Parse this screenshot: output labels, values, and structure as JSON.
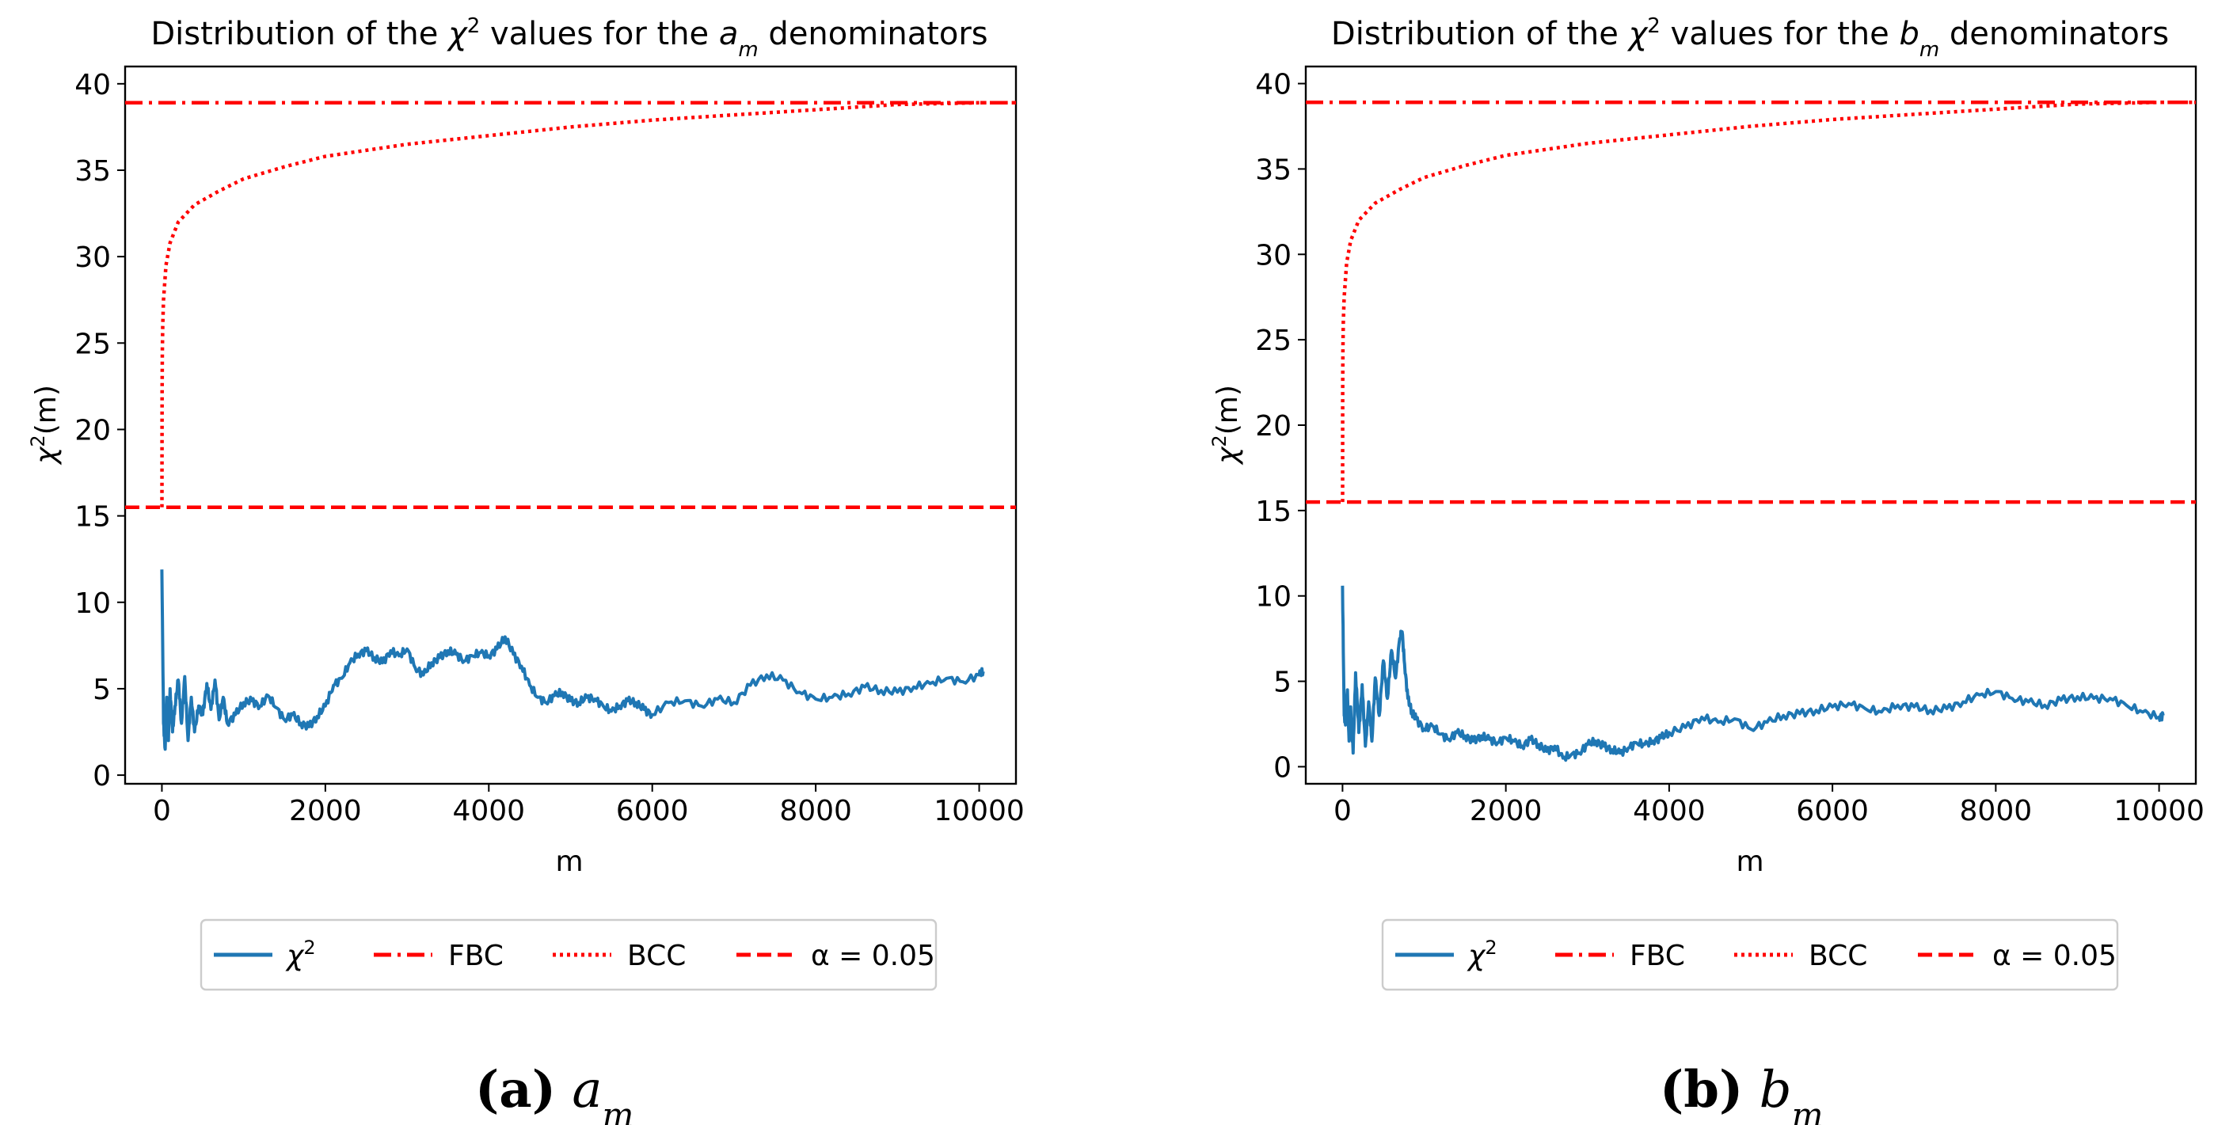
{
  "panels": [
    {
      "id": "a",
      "title_prefix": "Distribution of the ",
      "title_chi": "χ",
      "title_sup": "2",
      "title_mid": " values for the ",
      "title_var": "a",
      "title_sub": "m",
      "title_suffix": " denominators",
      "xlabel": "m",
      "ylabel_chi": "χ",
      "ylabel_sup": "2",
      "ylabel_rest": "(m)",
      "caption_letter": "(a)",
      "caption_var": "a",
      "caption_sub": "m"
    },
    {
      "id": "b",
      "title_prefix": "Distribution of the ",
      "title_chi": "χ",
      "title_sup": "2",
      "title_mid": " values for the ",
      "title_var": "b",
      "title_sub": "m",
      "title_suffix": " denominators",
      "xlabel": "m",
      "ylabel_chi": "χ",
      "ylabel_sup": "2",
      "ylabel_rest": "(m)",
      "caption_letter": "(b)",
      "caption_var": "b",
      "caption_sub": "m"
    }
  ],
  "legend": [
    {
      "label": "χ",
      "sup": "2",
      "style": "solid",
      "color": "#1f77b4"
    },
    {
      "label": "FBC",
      "sup": "",
      "style": "dashdot",
      "color": "#ff0000"
    },
    {
      "label": "BCC",
      "sup": "",
      "style": "dotted",
      "color": "#ff0000"
    },
    {
      "label": "α = 0.05",
      "sup": "",
      "style": "dashed",
      "color": "#ff0000"
    }
  ],
  "colors": {
    "chi2": "#1f77b4",
    "reference": "#ff0000"
  },
  "chart_data": [
    {
      "type": "line",
      "title": "Distribution of the χ² values for the a_m denominators",
      "xlabel": "m",
      "ylabel": "χ²(m)",
      "xlim": [
        -450,
        10450
      ],
      "ylim": [
        -0.5,
        41
      ],
      "xticks": [
        0,
        2000,
        4000,
        6000,
        8000,
        10000
      ],
      "yticks": [
        0,
        5,
        10,
        15,
        20,
        25,
        30,
        35,
        40
      ],
      "grid": false,
      "legend_position": "below",
      "series": [
        {
          "name": "χ²",
          "style": "solid",
          "color": "#1f77b4",
          "x": [
            0,
            20,
            40,
            60,
            80,
            100,
            130,
            160,
            200,
            240,
            280,
            320,
            360,
            400,
            450,
            500,
            550,
            600,
            650,
            700,
            750,
            800,
            900,
            1000,
            1100,
            1200,
            1300,
            1400,
            1500,
            1600,
            1700,
            1800,
            1900,
            2000,
            2100,
            2200,
            2300,
            2400,
            2500,
            2600,
            2700,
            2800,
            2900,
            3000,
            3100,
            3200,
            3300,
            3400,
            3500,
            3600,
            3700,
            3800,
            3900,
            4000,
            4100,
            4200,
            4300,
            4400,
            4500,
            4600,
            4700,
            4800,
            4900,
            5000,
            5100,
            5200,
            5300,
            5400,
            5500,
            5600,
            5700,
            5800,
            5900,
            6000,
            6200,
            6400,
            6600,
            6800,
            7000,
            7200,
            7400,
            7600,
            7800,
            8000,
            8200,
            8400,
            8600,
            8800,
            9000,
            9200,
            9400,
            9600,
            9800,
            10000,
            10050
          ],
          "y": [
            11.9,
            3.0,
            1.5,
            4.5,
            2.0,
            5.0,
            2.5,
            4.0,
            5.5,
            3.0,
            5.7,
            2.0,
            4.5,
            2.5,
            4.0,
            3.5,
            5.3,
            3.8,
            5.5,
            3.2,
            4.5,
            3.0,
            3.5,
            4.2,
            4.3,
            4.0,
            4.6,
            3.9,
            3.2,
            3.5,
            3.0,
            2.8,
            3.4,
            4.0,
            5.2,
            5.6,
            6.5,
            7.0,
            7.2,
            6.8,
            6.5,
            7.2,
            6.9,
            7.3,
            6.2,
            5.8,
            6.5,
            6.8,
            7.2,
            7.0,
            6.6,
            6.9,
            7.1,
            6.9,
            7.3,
            8.0,
            7.0,
            6.3,
            5.2,
            4.5,
            4.2,
            4.6,
            4.8,
            4.3,
            4.2,
            4.5,
            4.4,
            4.0,
            3.7,
            4.0,
            4.3,
            4.2,
            3.8,
            3.5,
            4.2,
            4.3,
            4.0,
            4.4,
            4.2,
            5.2,
            5.8,
            5.5,
            4.8,
            4.4,
            4.5,
            4.7,
            5.1,
            4.9,
            4.8,
            5.1,
            5.3,
            5.6,
            5.4,
            5.8,
            6.0
          ]
        },
        {
          "name": "FBC",
          "style": "dashdot",
          "color": "#ff0000",
          "x": [
            -450,
            10450
          ],
          "y": [
            38.9,
            38.9
          ]
        },
        {
          "name": "BCC",
          "style": "dotted",
          "color": "#ff0000",
          "x": [
            1,
            2,
            5,
            10,
            20,
            50,
            100,
            200,
            400,
            700,
            1000,
            1500,
            2000,
            3000,
            4000,
            5000,
            6000,
            7000,
            8000,
            9000,
            10000,
            10450
          ],
          "y": [
            15.5,
            22.0,
            24.5,
            26.0,
            27.5,
            29.5,
            30.8,
            32.0,
            33.0,
            33.8,
            34.5,
            35.2,
            35.8,
            36.5,
            37.0,
            37.5,
            37.9,
            38.2,
            38.5,
            38.8,
            38.9,
            38.9
          ]
        },
        {
          "name": "α = 0.05",
          "style": "dashed",
          "color": "#ff0000",
          "x": [
            -450,
            10450
          ],
          "y": [
            15.5,
            15.5
          ]
        }
      ]
    },
    {
      "type": "line",
      "title": "Distribution of the χ² values for the b_m denominators",
      "xlabel": "m",
      "ylabel": "χ²(m)",
      "xlim": [
        -450,
        10450
      ],
      "ylim": [
        -1.0,
        41
      ],
      "xticks": [
        0,
        2000,
        4000,
        6000,
        8000,
        10000
      ],
      "yticks": [
        0,
        5,
        10,
        15,
        20,
        25,
        30,
        35,
        40
      ],
      "grid": false,
      "legend_position": "below",
      "series": [
        {
          "name": "χ²",
          "style": "solid",
          "color": "#1f77b4",
          "x": [
            0,
            20,
            40,
            60,
            80,
            100,
            130,
            160,
            200,
            240,
            280,
            320,
            360,
            400,
            450,
            500,
            550,
            600,
            650,
            700,
            730,
            760,
            800,
            850,
            900,
            1000,
            1100,
            1200,
            1300,
            1400,
            1500,
            1600,
            1700,
            1800,
            1900,
            2000,
            2100,
            2200,
            2300,
            2400,
            2500,
            2600,
            2700,
            2800,
            2900,
            3000,
            3100,
            3200,
            3300,
            3400,
            3500,
            3600,
            3700,
            3800,
            3900,
            4000,
            4200,
            4400,
            4600,
            4800,
            5000,
            5200,
            5400,
            5600,
            5800,
            6000,
            6200,
            6400,
            6600,
            6800,
            7000,
            7200,
            7400,
            7600,
            7800,
            8000,
            8200,
            8400,
            8600,
            8800,
            9000,
            9200,
            9400,
            9600,
            9800,
            10000,
            10050
          ],
          "y": [
            10.6,
            3.0,
            2.5,
            4.5,
            1.5,
            3.5,
            0.8,
            5.5,
            2.0,
            4.8,
            1.2,
            3.8,
            1.5,
            5.2,
            3.0,
            6.2,
            4.0,
            6.8,
            5.2,
            7.5,
            7.9,
            6.0,
            4.0,
            3.2,
            2.8,
            2.2,
            2.4,
            1.9,
            1.6,
            2.0,
            1.8,
            1.5,
            1.8,
            1.6,
            1.4,
            1.7,
            1.5,
            1.2,
            1.6,
            1.3,
            0.9,
            1.2,
            0.5,
            0.7,
            0.8,
            1.3,
            1.5,
            1.2,
            1.0,
            0.8,
            1.1,
            1.4,
            1.3,
            1.5,
            1.7,
            2.0,
            2.3,
            2.9,
            2.6,
            2.8,
            2.2,
            2.6,
            3.0,
            3.1,
            3.3,
            3.5,
            3.7,
            3.4,
            3.2,
            3.6,
            3.5,
            3.3,
            3.4,
            3.8,
            4.2,
            4.4,
            4.0,
            3.8,
            3.6,
            3.9,
            4.1,
            4.0,
            4.0,
            3.6,
            3.2,
            2.9,
            3.0
          ]
        },
        {
          "name": "FBC",
          "style": "dashdot",
          "color": "#ff0000",
          "x": [
            -450,
            10450
          ],
          "y": [
            38.9,
            38.9
          ]
        },
        {
          "name": "BCC",
          "style": "dotted",
          "color": "#ff0000",
          "x": [
            1,
            2,
            5,
            10,
            20,
            50,
            100,
            200,
            400,
            700,
            1000,
            1500,
            2000,
            3000,
            4000,
            5000,
            6000,
            7000,
            8000,
            9000,
            10000,
            10450
          ],
          "y": [
            15.5,
            22.0,
            24.5,
            26.0,
            27.5,
            29.5,
            30.8,
            32.0,
            33.0,
            33.8,
            34.5,
            35.2,
            35.8,
            36.5,
            37.0,
            37.5,
            37.9,
            38.2,
            38.5,
            38.8,
            38.9,
            38.9
          ]
        },
        {
          "name": "α = 0.05",
          "style": "dashed",
          "color": "#ff0000",
          "x": [
            -450,
            10450
          ],
          "y": [
            15.5,
            15.5
          ]
        }
      ]
    }
  ]
}
